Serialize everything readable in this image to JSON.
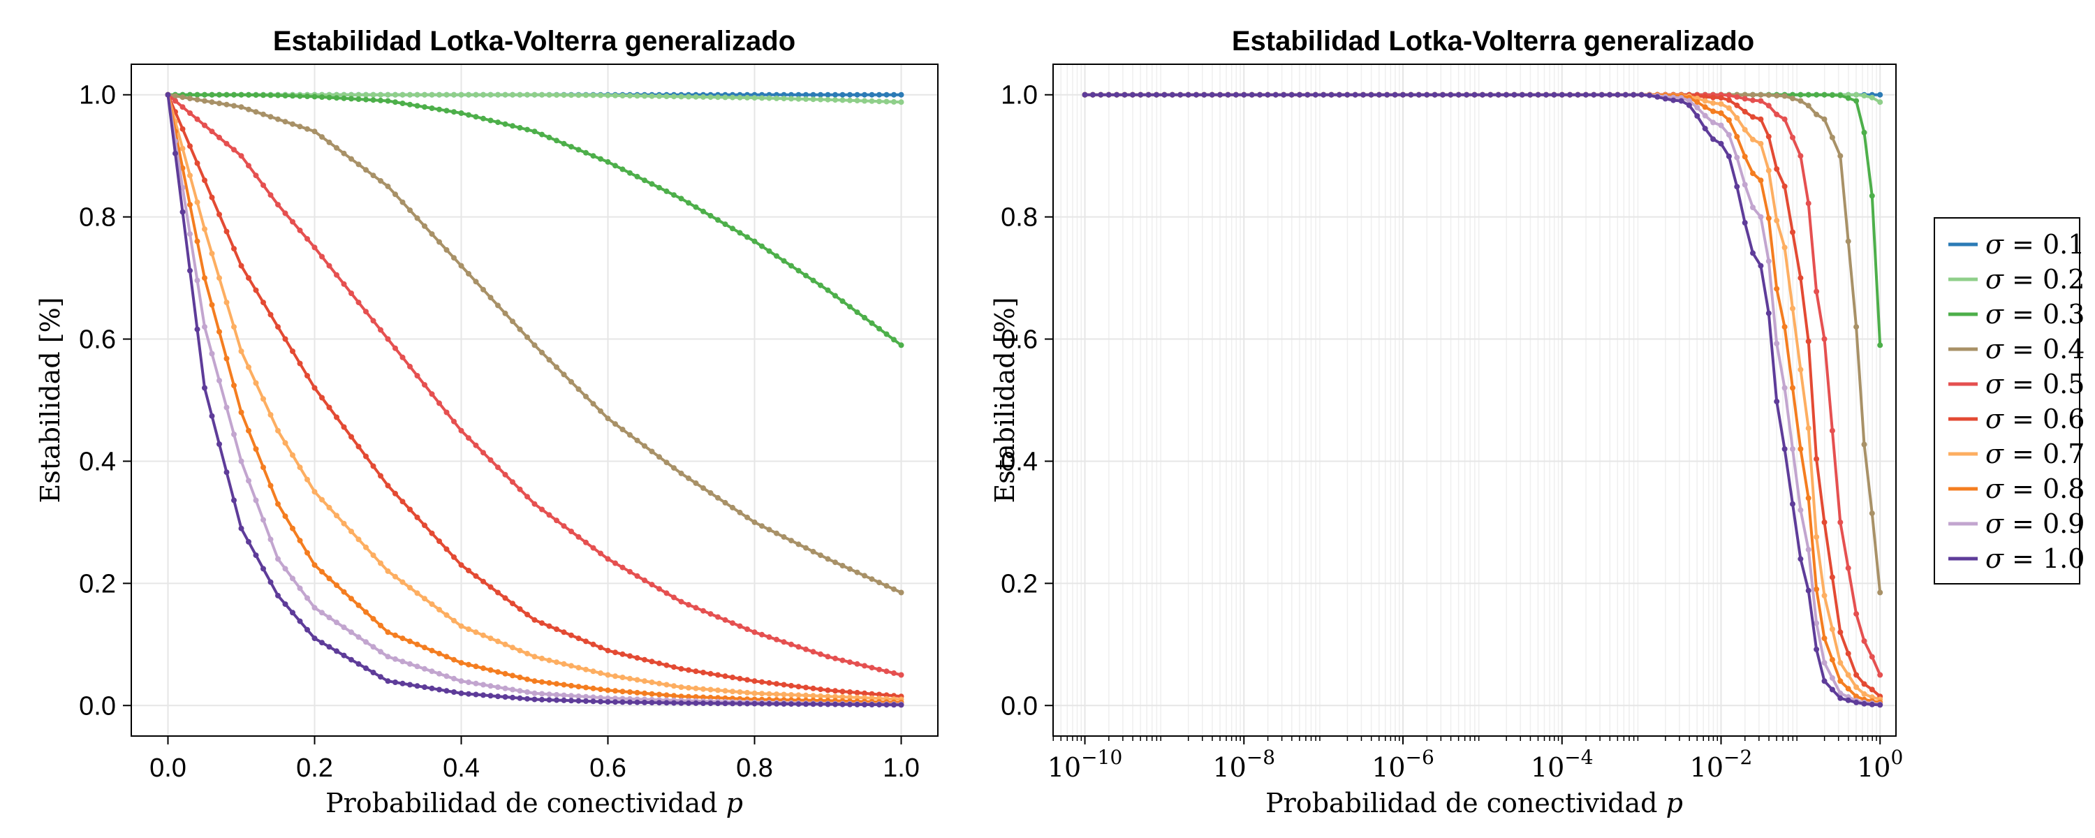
{
  "chart_data": [
    {
      "type": "line",
      "title": "Estabilidad Lotka-Volterra generalizado",
      "xlabel": "Probabilidad de conectividad p",
      "ylabel": "Estabilidad [%]",
      "xscale": "linear",
      "xlim": [
        -0.05,
        1.05
      ],
      "ylim": [
        -0.05,
        1.05
      ],
      "xticks": [
        0.0,
        0.2,
        0.4,
        0.6,
        0.8,
        1.0
      ],
      "xtick_labels": [
        "0.0",
        "0.2",
        "0.4",
        "0.6",
        "0.8",
        "1.0"
      ],
      "yticks": [
        0.0,
        0.2,
        0.4,
        0.6,
        0.8,
        1.0
      ],
      "ytick_labels": [
        "0.0",
        "0.2",
        "0.4",
        "0.6",
        "0.8",
        "1.0"
      ],
      "grid": true,
      "x": [
        0.0,
        0.05,
        0.1,
        0.15,
        0.2,
        0.3,
        0.4,
        0.5,
        0.6,
        0.7,
        0.8,
        0.9,
        1.0
      ],
      "series": [
        {
          "name": "σ = 0.1",
          "color": "#2c7bb6",
          "values": [
            1.0,
            1.0,
            1.0,
            1.0,
            1.0,
            1.0,
            1.0,
            1.0,
            1.0,
            1.0,
            1.0,
            1.0,
            1.0
          ]
        },
        {
          "name": "σ = 0.2",
          "color": "#8fcf8a",
          "values": [
            1.0,
            1.0,
            1.0,
            1.0,
            1.0,
            1.0,
            1.0,
            1.0,
            0.999,
            0.997,
            0.995,
            0.992,
            0.988
          ]
        },
        {
          "name": "σ = 0.3",
          "color": "#4daf4a",
          "values": [
            1.0,
            1.0,
            1.0,
            0.999,
            0.997,
            0.99,
            0.97,
            0.94,
            0.89,
            0.83,
            0.76,
            0.68,
            0.59
          ]
        },
        {
          "name": "σ = 0.4",
          "color": "#a89167",
          "values": [
            1.0,
            0.99,
            0.98,
            0.96,
            0.94,
            0.85,
            0.72,
            0.59,
            0.47,
            0.38,
            0.3,
            0.24,
            0.185
          ]
        },
        {
          "name": "σ = 0.5",
          "color": "#e55050",
          "values": [
            1.0,
            0.95,
            0.9,
            0.82,
            0.75,
            0.6,
            0.45,
            0.33,
            0.24,
            0.17,
            0.12,
            0.08,
            0.05
          ]
        },
        {
          "name": "σ = 0.6",
          "color": "#e34a33",
          "values": [
            1.0,
            0.86,
            0.72,
            0.62,
            0.52,
            0.36,
            0.23,
            0.14,
            0.09,
            0.06,
            0.04,
            0.025,
            0.015
          ]
        },
        {
          "name": "σ = 0.7",
          "color": "#fdae61",
          "values": [
            1.0,
            0.78,
            0.58,
            0.45,
            0.35,
            0.22,
            0.13,
            0.08,
            0.05,
            0.03,
            0.02,
            0.015,
            0.01
          ]
        },
        {
          "name": "σ = 0.8",
          "color": "#f47d20",
          "values": [
            1.0,
            0.7,
            0.48,
            0.33,
            0.23,
            0.12,
            0.07,
            0.04,
            0.025,
            0.015,
            0.01,
            0.008,
            0.005
          ]
        },
        {
          "name": "σ = 0.9",
          "color": "#c2a5cf",
          "values": [
            1.0,
            0.62,
            0.4,
            0.24,
            0.16,
            0.08,
            0.04,
            0.02,
            0.012,
            0.008,
            0.005,
            0.003,
            0.002
          ]
        },
        {
          "name": "σ = 1.0",
          "color": "#5e3c99",
          "values": [
            1.0,
            0.52,
            0.29,
            0.18,
            0.11,
            0.04,
            0.02,
            0.01,
            0.006,
            0.004,
            0.003,
            0.002,
            0.001
          ]
        }
      ]
    },
    {
      "type": "line",
      "title": "Estabilidad Lotka-Volterra generalizado",
      "xlabel": "Probabilidad de conectividad p",
      "ylabel": "Estabilidad [%]",
      "xscale": "log",
      "xlim_log10": [
        -10.4,
        0.2
      ],
      "ylim": [
        -0.05,
        1.05
      ],
      "xticks_log10": [
        -10,
        -8,
        -6,
        -4,
        -2,
        0
      ],
      "xtick_labels": [
        "10^-10",
        "10^-8",
        "10^-6",
        "10^-4",
        "10^-2",
        "10^0"
      ],
      "yticks": [
        0.0,
        0.2,
        0.4,
        0.6,
        0.8,
        1.0
      ],
      "ytick_labels": [
        "0.0",
        "0.2",
        "0.4",
        "0.6",
        "0.8",
        "1.0"
      ],
      "grid": true,
      "x_log10": [
        -10,
        -4,
        -3,
        -2.5,
        -2,
        -1.5,
        -1.2,
        -1,
        -0.7,
        -0.5,
        -0.3,
        -0.15,
        0
      ],
      "series": [
        {
          "name": "σ = 0.1",
          "color": "#2c7bb6",
          "values": [
            1.0,
            1.0,
            1.0,
            1.0,
            1.0,
            1.0,
            1.0,
            1.0,
            1.0,
            1.0,
            1.0,
            1.0,
            1.0
          ]
        },
        {
          "name": "σ = 0.2",
          "color": "#8fcf8a",
          "values": [
            1.0,
            1.0,
            1.0,
            1.0,
            1.0,
            1.0,
            1.0,
            1.0,
            1.0,
            1.0,
            1.0,
            0.998,
            0.988
          ]
        },
        {
          "name": "σ = 0.3",
          "color": "#4daf4a",
          "values": [
            1.0,
            1.0,
            1.0,
            1.0,
            1.0,
            1.0,
            1.0,
            1.0,
            1.0,
            0.999,
            0.99,
            0.92,
            0.59
          ]
        },
        {
          "name": "σ = 0.4",
          "color": "#a89167",
          "values": [
            1.0,
            1.0,
            1.0,
            1.0,
            1.0,
            1.0,
            0.998,
            0.99,
            0.96,
            0.9,
            0.62,
            0.36,
            0.185
          ]
        },
        {
          "name": "σ = 0.5",
          "color": "#e55050",
          "values": [
            1.0,
            1.0,
            1.0,
            1.0,
            1.0,
            0.99,
            0.96,
            0.9,
            0.6,
            0.3,
            0.15,
            0.09,
            0.05
          ]
        },
        {
          "name": "σ = 0.6",
          "color": "#e34a33",
          "values": [
            1.0,
            1.0,
            1.0,
            1.0,
            0.995,
            0.96,
            0.85,
            0.7,
            0.3,
            0.12,
            0.05,
            0.03,
            0.015
          ]
        },
        {
          "name": "σ = 0.7",
          "color": "#fdae61",
          "values": [
            1.0,
            1.0,
            1.0,
            0.999,
            0.985,
            0.92,
            0.75,
            0.55,
            0.18,
            0.07,
            0.03,
            0.015,
            0.01
          ]
        },
        {
          "name": "σ = 0.8",
          "color": "#f47d20",
          "values": [
            1.0,
            1.0,
            1.0,
            0.998,
            0.97,
            0.86,
            0.62,
            0.42,
            0.11,
            0.04,
            0.015,
            0.008,
            0.005
          ]
        },
        {
          "name": "σ = 0.9",
          "color": "#c2a5cf",
          "values": [
            1.0,
            1.0,
            1.0,
            0.995,
            0.95,
            0.8,
            0.52,
            0.32,
            0.07,
            0.02,
            0.008,
            0.004,
            0.002
          ]
        },
        {
          "name": "σ = 1.0",
          "color": "#5e3c99",
          "values": [
            1.0,
            1.0,
            1.0,
            0.99,
            0.92,
            0.72,
            0.42,
            0.24,
            0.04,
            0.012,
            0.005,
            0.002,
            0.001
          ]
        }
      ]
    }
  ],
  "legend": {
    "placement": "right",
    "entries": [
      {
        "sigma": "σ",
        "eq": " = ",
        "value": "0.1",
        "color": "#2c7bb6"
      },
      {
        "sigma": "σ",
        "eq": " = ",
        "value": "0.2",
        "color": "#8fcf8a"
      },
      {
        "sigma": "σ",
        "eq": " = ",
        "value": "0.3",
        "color": "#4daf4a"
      },
      {
        "sigma": "σ",
        "eq": " = ",
        "value": "0.4",
        "color": "#a89167"
      },
      {
        "sigma": "σ",
        "eq": " = ",
        "value": "0.5",
        "color": "#e55050"
      },
      {
        "sigma": "σ",
        "eq": " = ",
        "value": "0.6",
        "color": "#e34a33"
      },
      {
        "sigma": "σ",
        "eq": " = ",
        "value": "0.7",
        "color": "#fdae61"
      },
      {
        "sigma": "σ",
        "eq": " = ",
        "value": "0.8",
        "color": "#f47d20"
      },
      {
        "sigma": "σ",
        "eq": " = ",
        "value": "0.9",
        "color": "#c2a5cf"
      },
      {
        "sigma": "σ",
        "eq": " = ",
        "value": "1.0",
        "color": "#5e3c99"
      }
    ]
  }
}
